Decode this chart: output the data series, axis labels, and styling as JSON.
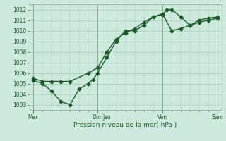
{
  "title": "",
  "xlabel": "Pression niveau de la mer( hPa )",
  "ylim": [
    1002.5,
    1012.5
  ],
  "yticks": [
    1003,
    1004,
    1005,
    1006,
    1007,
    1008,
    1009,
    1010,
    1011,
    1012
  ],
  "bg_color": "#cde8dc",
  "grid_color": "#a8ccba",
  "line_color": "#1a5c28",
  "line1_x": [
    0,
    0.5,
    1.0,
    1.5,
    2.0,
    2.5,
    3.0,
    3.25,
    3.5,
    4.0,
    4.5,
    5.0,
    5.5,
    6.0,
    6.5,
    7.0,
    7.25,
    7.5,
    8.0,
    8.5,
    9.0,
    9.5,
    10.0
  ],
  "line1_y": [
    1005.3,
    1005.0,
    1004.3,
    1003.3,
    1003.0,
    1004.5,
    1005.0,
    1005.4,
    1006.0,
    1007.5,
    1009.0,
    1010.0,
    1010.0,
    1010.5,
    1011.3,
    1011.5,
    1012.0,
    1012.0,
    1011.3,
    1010.5,
    1011.0,
    1011.2,
    1011.3
  ],
  "line2_x": [
    0,
    0.5,
    1.0,
    1.5,
    2.0,
    3.0,
    3.5,
    4.0,
    4.5,
    5.0,
    5.5,
    6.0,
    6.5,
    7.0,
    7.5,
    8.0,
    8.5,
    9.0,
    9.5,
    10.0
  ],
  "line2_y": [
    1005.5,
    1005.2,
    1005.2,
    1005.2,
    1005.2,
    1006.0,
    1006.5,
    1008.0,
    1009.2,
    1009.8,
    1010.2,
    1010.8,
    1011.3,
    1011.6,
    1010.0,
    1010.2,
    1010.5,
    1010.8,
    1011.0,
    1011.2
  ],
  "marker_size": 2.5,
  "linewidth": 1.0,
  "major_xtick_positions": [
    0,
    3.5,
    4.0,
    7.0,
    10.0
  ],
  "major_xtick_labels": [
    "Mer",
    "Dim",
    "Jeu",
    "Ven",
    "Sam"
  ],
  "xlim": [
    -0.2,
    10.2
  ],
  "figsize": [
    3.2,
    2.0
  ],
  "dpi": 100
}
